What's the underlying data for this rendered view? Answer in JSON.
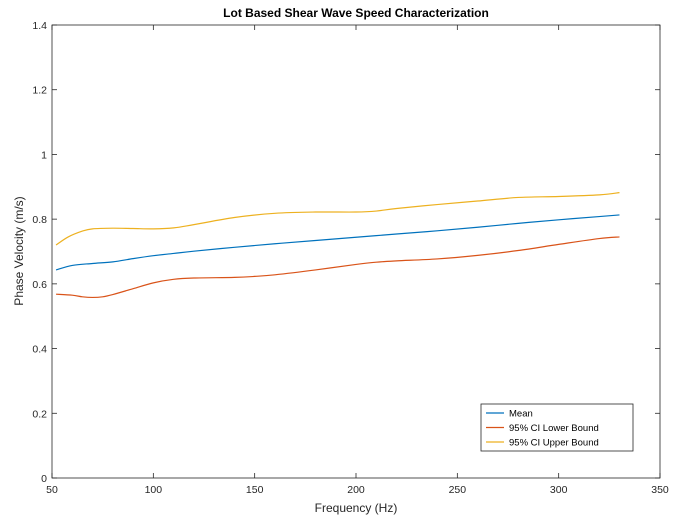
{
  "chart_data": {
    "type": "line",
    "title": "Lot Based Shear Wave Speed Characterization",
    "xlabel": "Frequency (Hz)",
    "ylabel": "Phase Velocity (m/s)",
    "xlim": [
      50,
      350
    ],
    "ylim": [
      0,
      1.4
    ],
    "xticks": [
      "50",
      "100",
      "150",
      "200",
      "250",
      "300",
      "350"
    ],
    "yticks": [
      "0",
      "0.2",
      "0.4",
      "0.6",
      "0.8",
      "1",
      "1.2",
      "1.4"
    ],
    "grid": false,
    "legend_position": "bottom-right",
    "series": [
      {
        "name": "Mean",
        "color": "#0072BD",
        "x": [
          52,
          60,
          70,
          80,
          90,
          100,
          110,
          120,
          140,
          160,
          180,
          200,
          220,
          240,
          260,
          280,
          300,
          320,
          330
        ],
        "y": [
          0.643,
          0.657,
          0.663,
          0.668,
          0.678,
          0.687,
          0.694,
          0.701,
          0.713,
          0.724,
          0.734,
          0.744,
          0.754,
          0.764,
          0.775,
          0.787,
          0.798,
          0.808,
          0.813
        ]
      },
      {
        "name": "95% CI Lower Bound",
        "color": "#D95319",
        "x": [
          52,
          60,
          65,
          70,
          75,
          80,
          90,
          100,
          110,
          120,
          140,
          150,
          160,
          180,
          200,
          210,
          220,
          240,
          260,
          280,
          300,
          320,
          330
        ],
        "y": [
          0.568,
          0.565,
          0.56,
          0.558,
          0.56,
          0.567,
          0.585,
          0.603,
          0.614,
          0.618,
          0.62,
          0.623,
          0.628,
          0.643,
          0.66,
          0.667,
          0.671,
          0.677,
          0.688,
          0.703,
          0.722,
          0.74,
          0.745
        ]
      },
      {
        "name": "95% CI Upper Bound",
        "color": "#EDB120",
        "x": [
          52,
          58,
          65,
          70,
          80,
          90,
          100,
          110,
          120,
          140,
          160,
          180,
          200,
          210,
          220,
          240,
          260,
          280,
          300,
          320,
          330
        ],
        "y": [
          0.72,
          0.745,
          0.763,
          0.77,
          0.772,
          0.771,
          0.77,
          0.773,
          0.783,
          0.805,
          0.818,
          0.822,
          0.822,
          0.825,
          0.833,
          0.845,
          0.856,
          0.867,
          0.87,
          0.875,
          0.882
        ]
      }
    ]
  }
}
